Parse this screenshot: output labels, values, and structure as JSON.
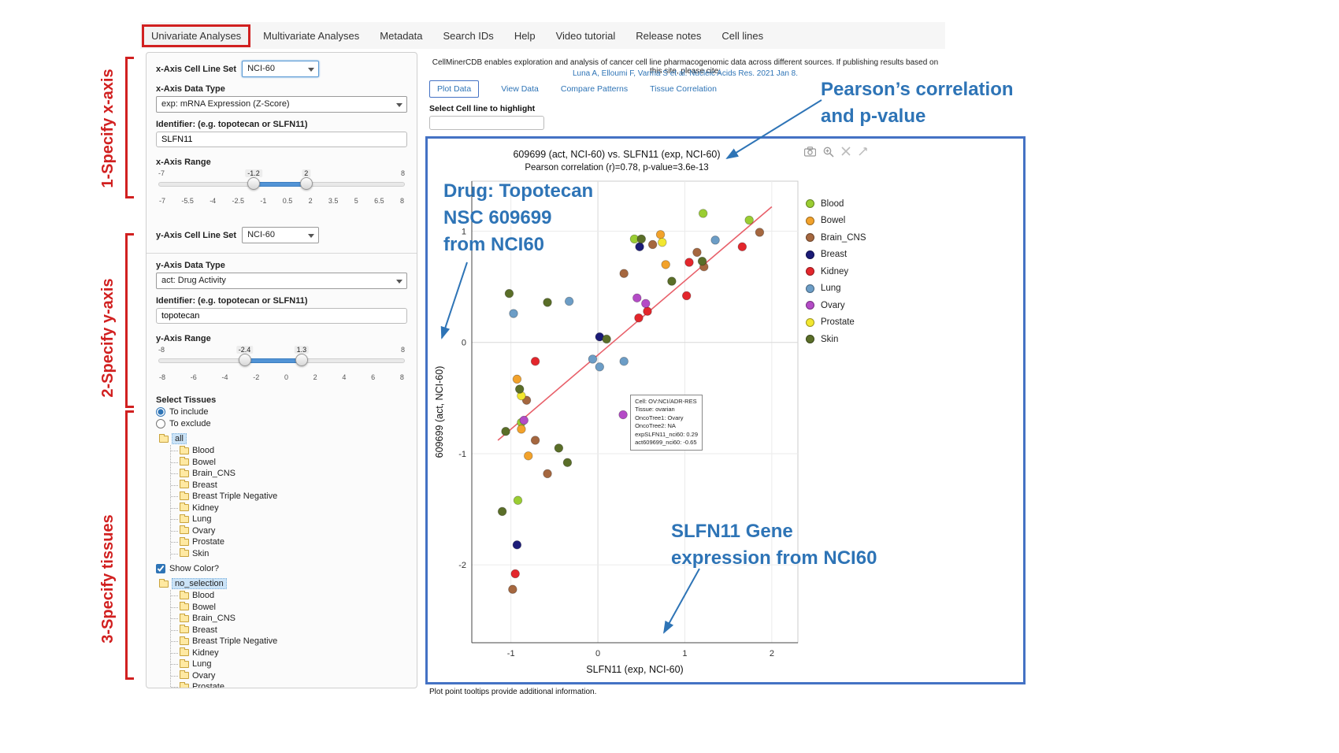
{
  "page": {
    "footer_note": "Plot point tooltips provide additional information."
  },
  "nav": {
    "tabs": [
      {
        "label": "Univariate Analyses",
        "active": true
      },
      {
        "label": "Multivariate Analyses",
        "active": false
      },
      {
        "label": "Metadata",
        "active": false
      },
      {
        "label": "Search IDs",
        "active": false
      },
      {
        "label": "Help",
        "active": false
      },
      {
        "label": "Video tutorial",
        "active": false
      },
      {
        "label": "Release notes",
        "active": false
      },
      {
        "label": "Cell lines",
        "active": false
      }
    ]
  },
  "red_annotations": [
    "1-Specify x-axis",
    "2-Specify y-axis",
    "3-Specify tissues"
  ],
  "blue_annotations": {
    "pearson": {
      "line1": "Pearson’s correlation",
      "line2": "and p-value"
    },
    "drug": {
      "line1": "Drug: Topotecan",
      "line2": "NSC 609699",
      "line3": "from NCI60"
    },
    "gene": {
      "line1": "SLFN11 Gene",
      "line2": "expression from NCI60"
    }
  },
  "sidebar": {
    "x": {
      "set_label": "x-Axis Cell Line Set",
      "set_value": "NCI-60",
      "type_label": "x-Axis Data Type",
      "type_value": "exp: mRNA Expression (Z-Score)",
      "id_label": "Identifier: (e.g. topotecan or SLFN11)",
      "id_value": "SLFN11",
      "range_label": "x-Axis Range",
      "range": {
        "min": -7,
        "max": 8,
        "low": -1.2,
        "high": 2,
        "min_label": "-7",
        "max_label": "8",
        "low_label": "-1.2",
        "high_label": "2",
        "ticks": [
          "-7",
          "-5.5",
          "-4",
          "-2.5",
          "-1",
          "0.5",
          "2",
          "3.5",
          "5",
          "6.5",
          "8"
        ]
      }
    },
    "y": {
      "set_label": "y-Axis Cell Line Set",
      "set_value": "NCI-60",
      "type_label": "y-Axis Data Type",
      "type_value": "act: Drug Activity",
      "id_label": "Identifier: (e.g. topotecan or SLFN11)",
      "id_value": "topotecan",
      "range_label": "y-Axis Range",
      "range": {
        "min": -8,
        "max": 8,
        "low": -2.4,
        "high": 1.3,
        "min_label": "-8",
        "max_label": "8",
        "low_label": "-2.4",
        "high_label": "1.3",
        "ticks": [
          "-8",
          "-6",
          "-4",
          "-2",
          "0",
          "2",
          "4",
          "6",
          "8"
        ]
      }
    },
    "tissues": {
      "label": "Select Tissues",
      "include_label": "To include",
      "exclude_label": "To exclude",
      "include_selected": true,
      "show_color_label": "Show Color?",
      "show_color_checked": true,
      "include_tree_root": "all",
      "exclude_tree_root": "no_selection",
      "tree_items": [
        "Blood",
        "Bowel",
        "Brain_CNS",
        "Breast",
        "Breast Triple Negative",
        "Kidney",
        "Lung",
        "Ovary",
        "Prostate",
        "Skin"
      ]
    }
  },
  "main": {
    "intro": "CellMinerCDB enables exploration and analysis of cancer cell line pharmacogenomic data across different sources. If publishing results based on this site, please cite:",
    "citation": "Luna A, Elloumi F, Varma S et al. Nucleic Acids Res. 2021 Jan 8.",
    "tabs": [
      {
        "label": "Plot Data",
        "active": true
      },
      {
        "label": "View Data",
        "active": false
      },
      {
        "label": "Compare Patterns",
        "active": false
      },
      {
        "label": "Tissue Correlation",
        "active": false
      }
    ],
    "highlight_label": "Select Cell line to highlight",
    "highlight_value": ""
  },
  "chart_data": {
    "type": "scatter",
    "title": "609699 (act, NCI-60) vs. SLFN11 (exp, NCI-60)",
    "subtitle": "Pearson correlation (r)=0.78, p-value=3.6e-13",
    "pearson_r": 0.78,
    "p_value": "3.6e-13",
    "xlabel": "SLFN11 (exp, NCI-60)",
    "ylabel": "609699 (act, NCI-60)",
    "xlim": [
      -1.45,
      2.3
    ],
    "ylim": [
      -2.7,
      1.45
    ],
    "xticks": [
      -1,
      0,
      1,
      2
    ],
    "yticks": [
      -2,
      -1,
      0,
      1
    ],
    "grid": true,
    "legend_position": "right",
    "trend_line": {
      "x1": -1.15,
      "y1": -0.88,
      "x2": 2.0,
      "y2": 1.22,
      "color": "#e8606a"
    },
    "series": [
      {
        "name": "Blood",
        "color": "#9acd32",
        "points": [
          [
            1.21,
            1.16
          ],
          [
            1.74,
            1.1
          ],
          [
            0.42,
            0.93
          ],
          [
            -0.88,
            -0.72
          ],
          [
            -0.92,
            -1.42
          ]
        ]
      },
      {
        "name": "Bowel",
        "color": "#f2a22b",
        "points": [
          [
            0.72,
            0.97
          ],
          [
            0.78,
            0.7
          ],
          [
            -0.93,
            -0.33
          ],
          [
            -0.88,
            -0.78
          ],
          [
            -0.8,
            -1.02
          ]
        ]
      },
      {
        "name": "Brain_CNS",
        "color": "#a5673f",
        "points": [
          [
            1.86,
            0.99
          ],
          [
            1.14,
            0.81
          ],
          [
            0.63,
            0.88
          ],
          [
            1.22,
            0.68
          ],
          [
            0.3,
            0.62
          ],
          [
            -0.82,
            -0.52
          ],
          [
            -0.72,
            -0.88
          ],
          [
            -0.58,
            -1.18
          ],
          [
            -0.98,
            -2.22
          ]
        ]
      },
      {
        "name": "Breast",
        "color": "#1b1b77",
        "points": [
          [
            0.48,
            0.86
          ],
          [
            0.02,
            0.05
          ],
          [
            -0.93,
            -1.82
          ]
        ]
      },
      {
        "name": "Kidney",
        "color": "#e3262c",
        "points": [
          [
            1.66,
            0.86
          ],
          [
            1.05,
            0.72
          ],
          [
            1.02,
            0.42
          ],
          [
            0.57,
            0.28
          ],
          [
            0.47,
            0.22
          ],
          [
            -0.72,
            -0.17
          ],
          [
            -0.95,
            -2.08
          ]
        ]
      },
      {
        "name": "Lung",
        "color": "#6c9dc6",
        "points": [
          [
            1.35,
            0.92
          ],
          [
            -0.33,
            0.37
          ],
          [
            -0.97,
            0.26
          ],
          [
            -0.06,
            -0.15
          ],
          [
            0.02,
            -0.22
          ],
          [
            0.3,
            -0.17
          ]
        ]
      },
      {
        "name": "Ovary",
        "color": "#b44bc6",
        "points": [
          [
            0.45,
            0.4
          ],
          [
            0.55,
            0.35
          ],
          [
            0.29,
            -0.65
          ],
          [
            -0.85,
            -0.7
          ]
        ]
      },
      {
        "name": "Prostate",
        "color": "#f2e730",
        "points": [
          [
            0.74,
            0.9
          ],
          [
            -0.88,
            -0.48
          ]
        ]
      },
      {
        "name": "Skin",
        "color": "#5a6e28",
        "points": [
          [
            0.5,
            0.93
          ],
          [
            1.2,
            0.73
          ],
          [
            0.85,
            0.55
          ],
          [
            -1.02,
            0.44
          ],
          [
            -0.58,
            0.36
          ],
          [
            0.1,
            0.03
          ],
          [
            -0.9,
            -0.42
          ],
          [
            -1.06,
            -0.8
          ],
          [
            -0.45,
            -0.95
          ],
          [
            -0.35,
            -1.08
          ],
          [
            -1.1,
            -1.52
          ]
        ]
      }
    ],
    "tooltip": {
      "x": 0.29,
      "y": -0.65,
      "lines": [
        "Cell: OV:NCI/ADR-RES",
        "Tissue: ovarian",
        "OncoTree1: Ovary",
        "OncoTree2: NA",
        "expSLFN11_nci60: 0.29",
        "act609699_nci60: -0.65"
      ]
    }
  }
}
